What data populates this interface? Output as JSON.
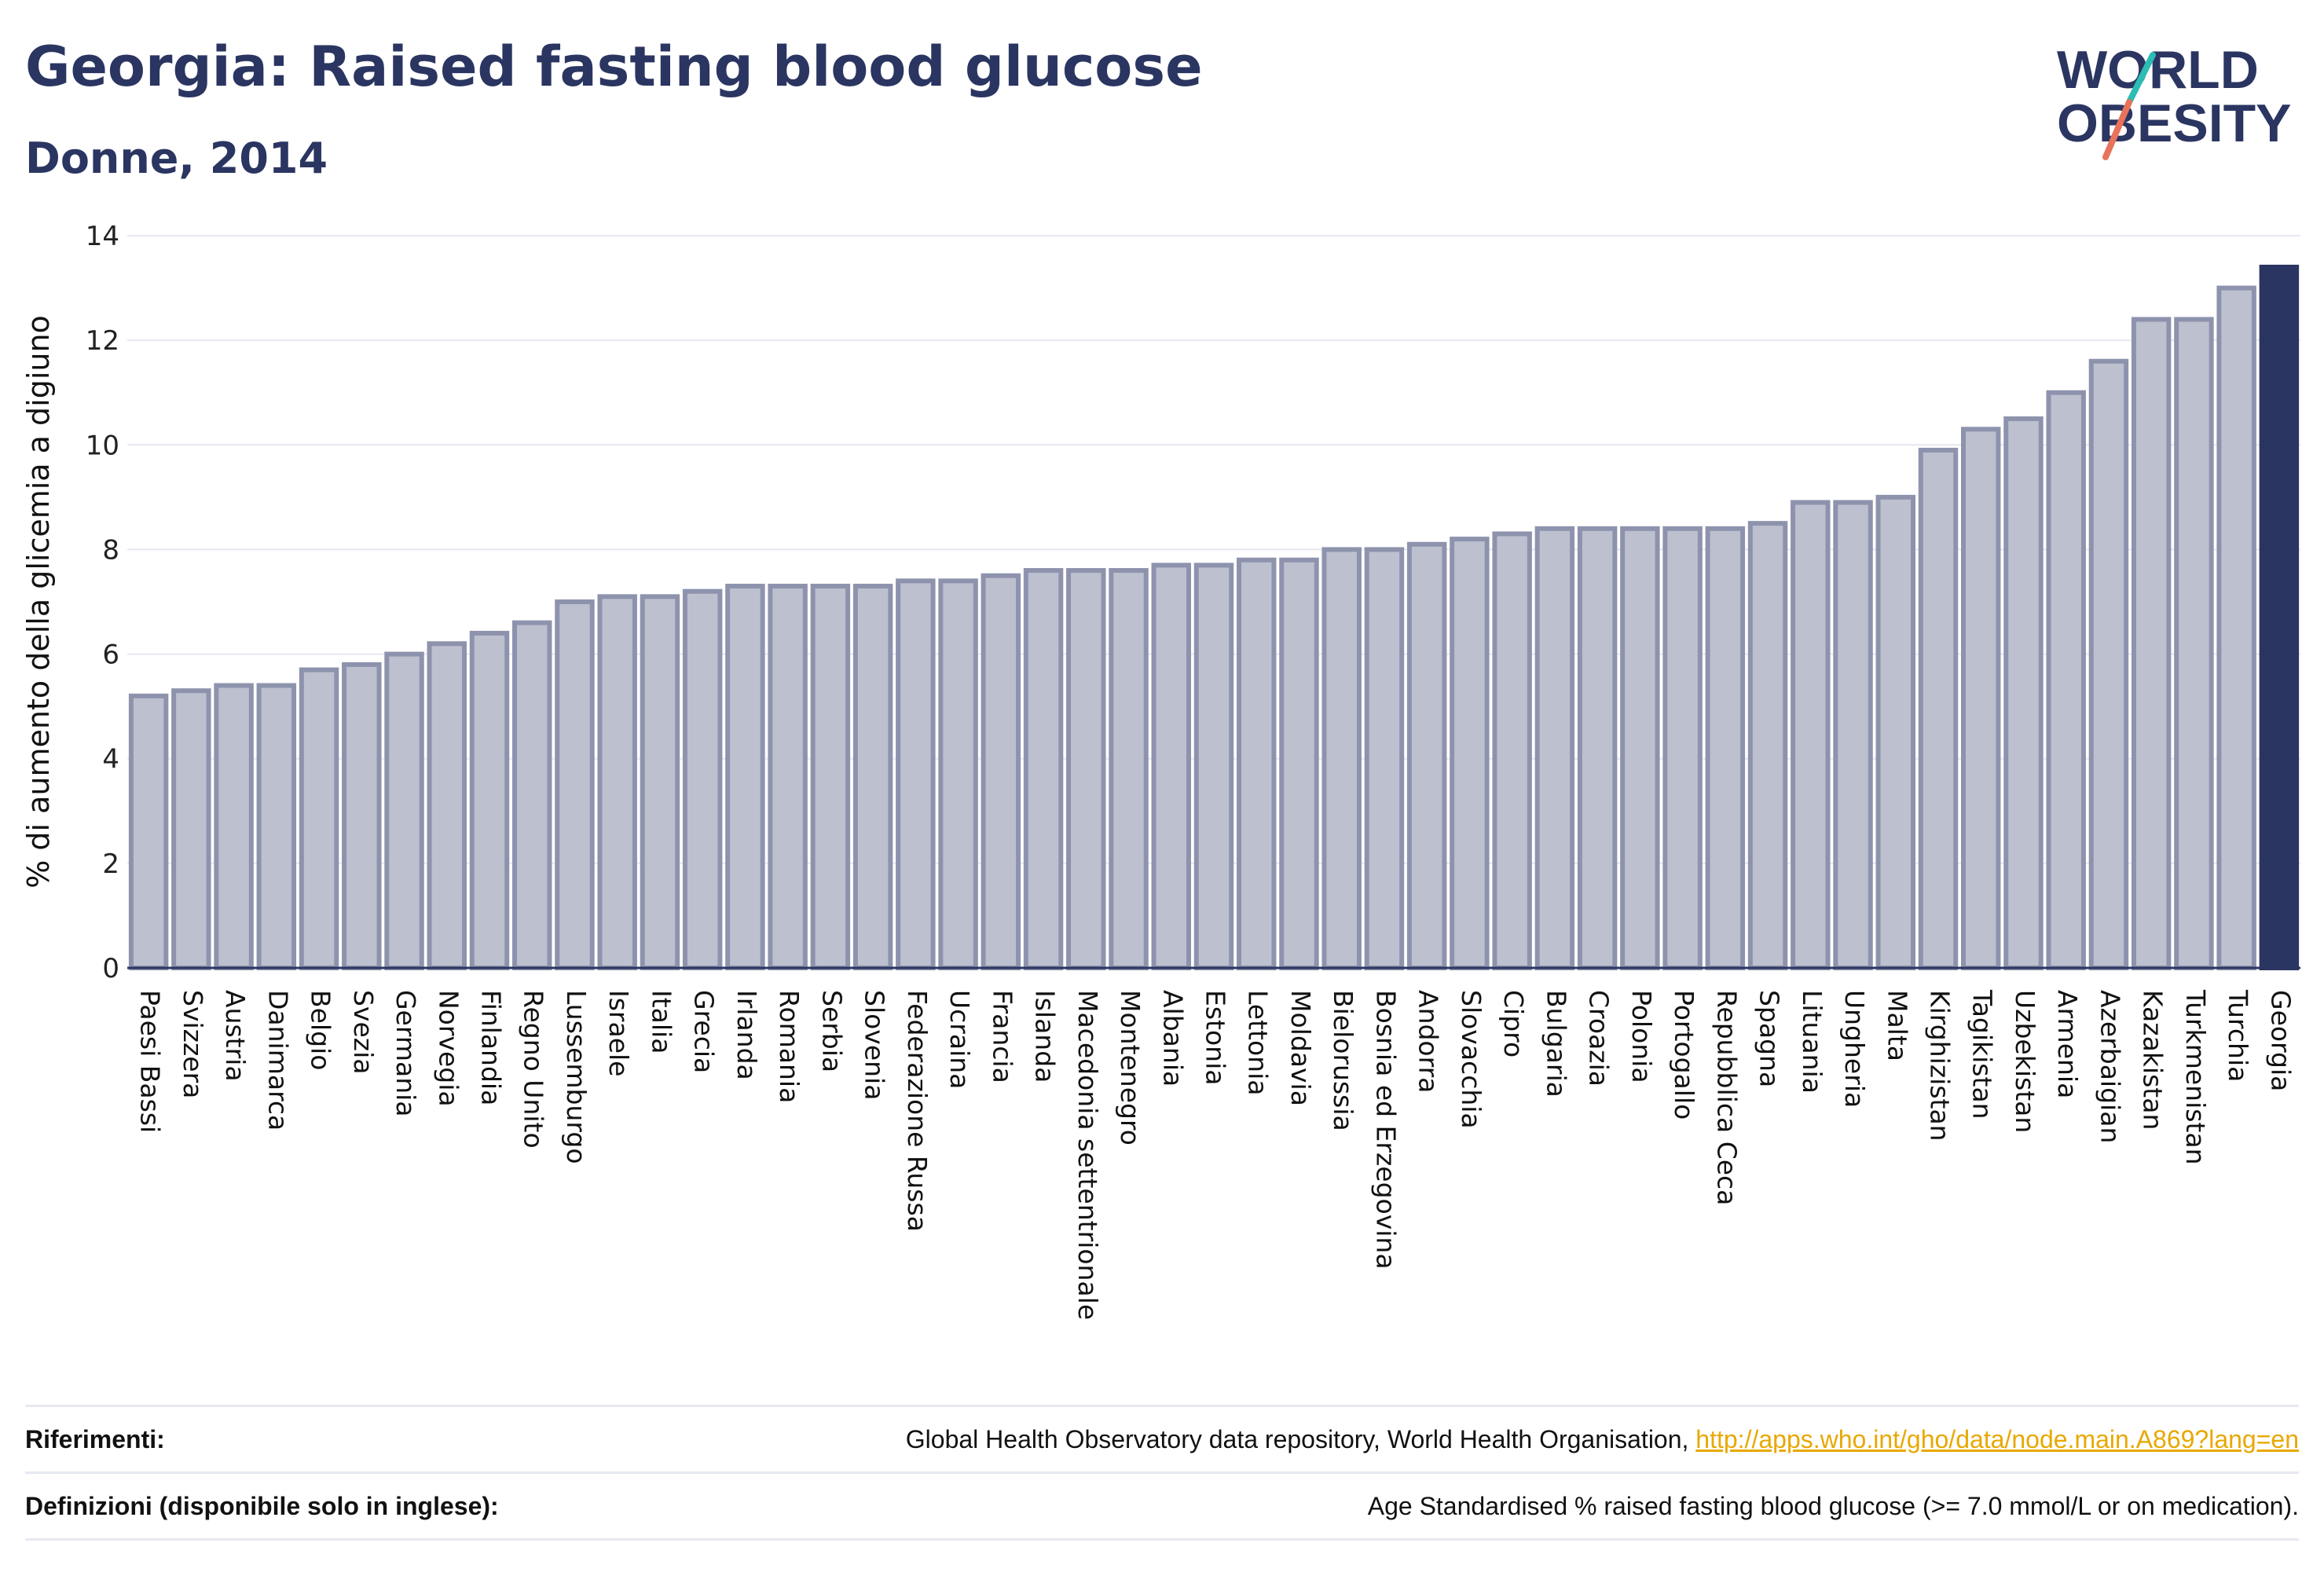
{
  "header": {
    "title": "Georgia: Raised fasting blood glucose",
    "subtitle": "Donne, 2014"
  },
  "logo": {
    "line1": "WORLD",
    "line2": "OBESITY"
  },
  "colors": {
    "bar_fill": "#bcc0cf",
    "bar_stroke": "#8e93ad",
    "highlight": "#2b3561",
    "grid": "#e6e8f2",
    "logo_teal": "#2bbdb4",
    "logo_coral": "#e8735a"
  },
  "chart_data": {
    "type": "bar",
    "title": "Georgia: Raised fasting blood glucose",
    "subtitle": "Donne, 2014",
    "ylabel": "% di aumento della glicemia a digiuno",
    "xlabel": "",
    "ylim": [
      0,
      14
    ],
    "yticks": [
      0,
      2,
      4,
      6,
      8,
      10,
      12,
      14
    ],
    "grid": true,
    "highlight": "Georgia",
    "categories": [
      "Paesi Bassi",
      "Svizzera",
      "Austria",
      "Danimarca",
      "Belgio",
      "Svezia",
      "Germania",
      "Norvegia",
      "Finlandia",
      "Regno Unito",
      "Lussemburgo",
      "Israele",
      "Italia",
      "Grecia",
      "Irlanda",
      "Romania",
      "Serbia",
      "Slovenia",
      "Federazione Russa",
      "Ucraina",
      "Francia",
      "Islanda",
      "Macedonia settentrionale",
      "Montenegro",
      "Albania",
      "Estonia",
      "Lettonia",
      "Moldavia",
      "Bielorussia",
      "Bosnia ed Erzegovina",
      "Andorra",
      "Slovacchia",
      "Cipro",
      "Bulgaria",
      "Croazia",
      "Polonia",
      "Portogallo",
      "Repubblica Ceca",
      "Spagna",
      "Lituania",
      "Ungheria",
      "Malta",
      "Kirghizistan",
      "Tagikistan",
      "Uzbekistan",
      "Armenia",
      "Azerbaigian",
      "Kazakistan",
      "Turkmenistan",
      "Turchia",
      "Georgia"
    ],
    "values": [
      5.2,
      5.3,
      5.4,
      5.4,
      5.7,
      5.8,
      6.0,
      6.2,
      6.4,
      6.6,
      7.0,
      7.1,
      7.1,
      7.2,
      7.3,
      7.3,
      7.3,
      7.3,
      7.4,
      7.4,
      7.5,
      7.6,
      7.6,
      7.6,
      7.7,
      7.7,
      7.8,
      7.8,
      8.0,
      8.0,
      8.1,
      8.2,
      8.3,
      8.4,
      8.4,
      8.4,
      8.4,
      8.4,
      8.5,
      8.9,
      8.9,
      9.0,
      9.9,
      10.3,
      10.5,
      11.0,
      11.6,
      12.4,
      12.4,
      13.0,
      13.4
    ]
  },
  "footer": {
    "references_label": "Riferimenti:",
    "references_text": "Global Health Observatory data repository, World Health Organisation, ",
    "references_link": "http://apps.who.int/gho/data/node.main.A869?lang=en",
    "definitions_label": "Definizioni (disponibile solo in inglese):",
    "definitions_text": "Age Standardised % raised fasting blood glucose (>= 7.0 mmol/L or on medication)."
  }
}
